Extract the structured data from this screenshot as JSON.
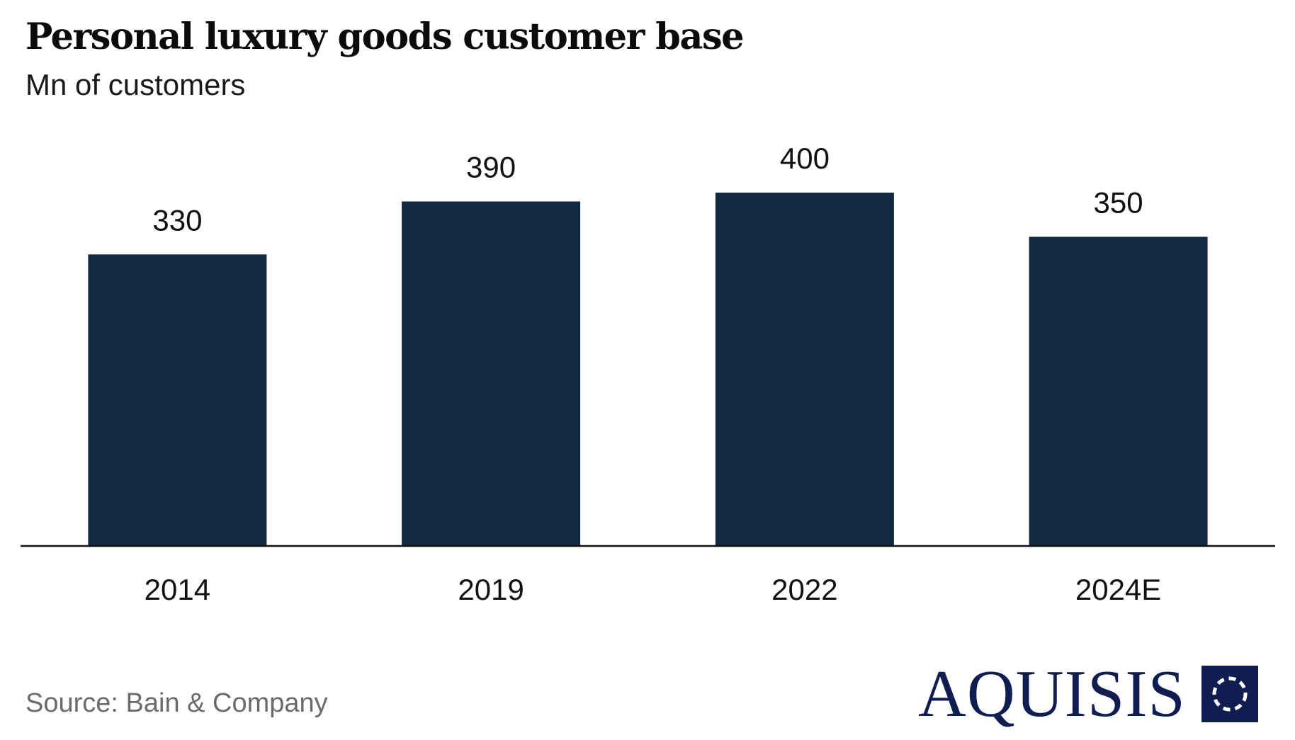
{
  "header": {
    "title": "Personal luxury goods customer base",
    "subtitle": "Mn of customers"
  },
  "chart_data": {
    "type": "bar",
    "title": "Personal luxury goods customer base",
    "subtitle": "Mn of customers",
    "categories": [
      "2014",
      "2019",
      "2022",
      "2024E"
    ],
    "values": [
      330,
      390,
      400,
      350
    ],
    "value_labels": [
      "330",
      "390",
      "400",
      "350"
    ],
    "xlabel": "",
    "ylabel": "Mn of customers",
    "ylim": [
      0,
      400
    ],
    "grid": false,
    "legend": "none",
    "bar_color": "#12293f"
  },
  "footer": {
    "source": "Source: Bain & Company"
  },
  "logo": {
    "text": "AQUISIS",
    "icon": "aquisis-logo-mark",
    "color": "#0f1d50"
  }
}
